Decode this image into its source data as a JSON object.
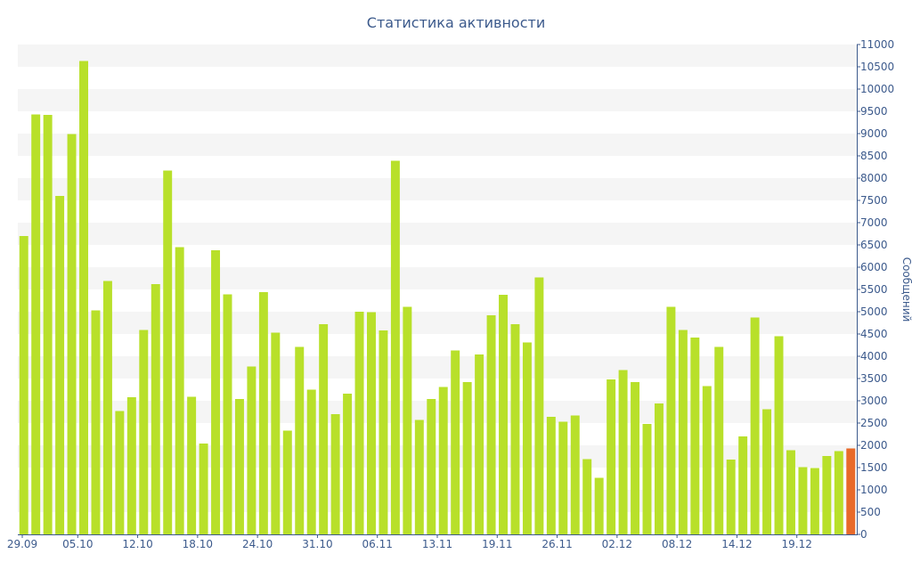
{
  "chart_data": {
    "type": "bar",
    "title": "Статистика активности",
    "xlabel": "",
    "ylabel": "Сообщений",
    "ylim": [
      0,
      11000
    ],
    "y_axis_position": "right",
    "y_ticks": [
      0,
      500,
      1000,
      1500,
      2000,
      2500,
      3000,
      3500,
      4000,
      4500,
      5000,
      5500,
      6000,
      6500,
      7000,
      7500,
      8000,
      8500,
      9000,
      9500,
      10000,
      10500,
      11000
    ],
    "x_tick_labels": [
      {
        "label": "29.09",
        "index": 0
      },
      {
        "label": "05.10",
        "index": 5
      },
      {
        "label": "12.10",
        "index": 10
      },
      {
        "label": "18.10",
        "index": 15
      },
      {
        "label": "24.10",
        "index": 20
      },
      {
        "label": "31.10",
        "index": 25
      },
      {
        "label": "06.11",
        "index": 30
      },
      {
        "label": "13.11",
        "index": 35
      },
      {
        "label": "19.11",
        "index": 40
      },
      {
        "label": "26.11",
        "index": 45
      },
      {
        "label": "02.12",
        "index": 50
      },
      {
        "label": "08.12",
        "index": 55
      },
      {
        "label": "14.12",
        "index": 60
      },
      {
        "label": "19.12",
        "index": 65
      }
    ],
    "grid": "alternating horizontal bands",
    "series": [
      {
        "color": "#b8e02a",
        "values": [
          6700,
          9430,
          9420,
          7600,
          8990,
          10630,
          5030,
          5690,
          2770,
          3080,
          4590,
          5620,
          8170,
          6450,
          3090,
          2040,
          6380,
          5390,
          3040,
          3770,
          5440,
          4530,
          2330,
          4210,
          3250,
          4720,
          2700,
          3160,
          5000,
          4990,
          4580,
          8390,
          5110,
          2570,
          3040,
          3310,
          4130,
          3420,
          4040,
          4920,
          5380,
          4720,
          4310,
          5770,
          2640,
          2530,
          2670,
          1690,
          1270,
          3480,
          3690,
          3420,
          2480,
          2940,
          5110,
          4590,
          4420,
          3330,
          4210,
          1680,
          2200,
          4870,
          2810,
          4450,
          1890,
          1510,
          1490,
          1760,
          1870,
          0
        ]
      },
      {
        "color": "#e86a2a",
        "values": [
          0,
          0,
          0,
          0,
          0,
          0,
          0,
          0,
          0,
          0,
          0,
          0,
          0,
          0,
          0,
          0,
          0,
          0,
          0,
          0,
          0,
          0,
          0,
          0,
          0,
          0,
          0,
          0,
          0,
          0,
          0,
          0,
          0,
          0,
          0,
          0,
          0,
          0,
          0,
          0,
          0,
          0,
          0,
          0,
          0,
          0,
          0,
          0,
          0,
          0,
          0,
          0,
          0,
          0,
          0,
          0,
          0,
          0,
          0,
          0,
          0,
          0,
          0,
          0,
          0,
          0,
          0,
          0,
          0,
          1930
        ]
      }
    ],
    "colors": {
      "text": "#3c5a8c",
      "band": "#f5f5f5",
      "axis": "#3c5a8c"
    }
  }
}
